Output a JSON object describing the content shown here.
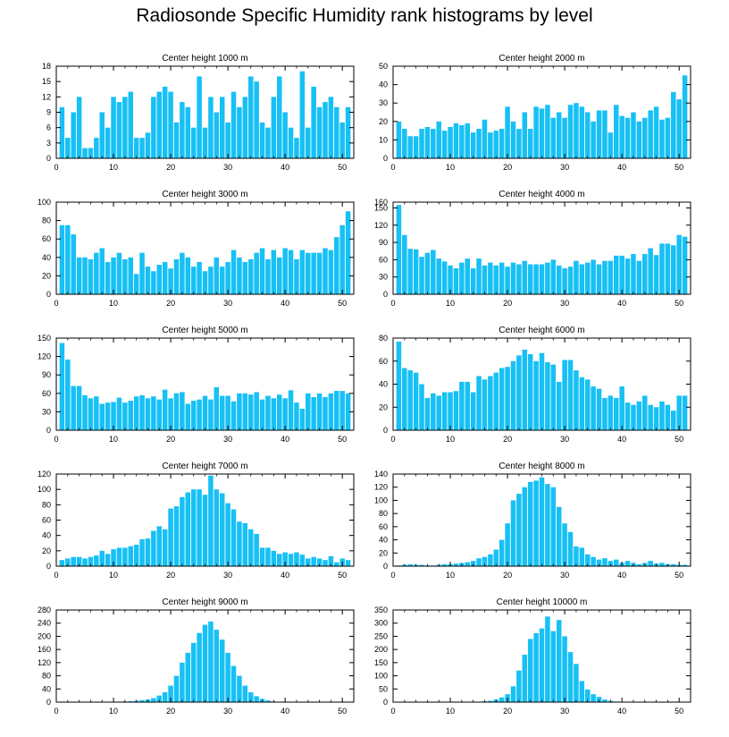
{
  "title": "Radiosonde Specific Humidity rank histograms by level",
  "colors": {
    "bar": "#17c0f5",
    "axis": "#000000"
  },
  "chart_data": [
    {
      "type": "bar",
      "title": "Center height 1000 m",
      "xlim": [
        0,
        52
      ],
      "ylim": [
        0,
        18
      ],
      "xticks": [
        0,
        10,
        20,
        30,
        40,
        50
      ],
      "yticks": [
        0,
        3,
        6,
        9,
        12,
        15,
        18
      ],
      "x": [
        1,
        2,
        3,
        4,
        5,
        6,
        7,
        8,
        9,
        10,
        11,
        12,
        13,
        14,
        15,
        16,
        17,
        18,
        19,
        20,
        21,
        22,
        23,
        24,
        25,
        26,
        27,
        28,
        29,
        30,
        31,
        32,
        33,
        34,
        35,
        36,
        37,
        38,
        39,
        40,
        41,
        42,
        43,
        44,
        45,
        46,
        47,
        48,
        49,
        50,
        51
      ],
      "values": [
        10,
        4,
        9,
        12,
        2,
        2,
        4,
        9,
        6,
        12,
        11,
        12,
        13,
        4,
        4,
        5,
        12,
        13,
        14,
        13,
        7,
        11,
        10,
        6,
        16,
        6,
        12,
        9,
        12,
        7,
        13,
        10,
        12,
        16,
        15,
        7,
        6,
        12,
        16,
        9,
        6,
        4,
        17,
        6,
        14,
        10,
        11,
        12,
        10,
        7,
        10
      ]
    },
    {
      "type": "bar",
      "title": "Center height 2000 m",
      "xlim": [
        0,
        52
      ],
      "ylim": [
        0,
        50
      ],
      "xticks": [
        0,
        10,
        20,
        30,
        40,
        50
      ],
      "yticks": [
        0,
        10,
        20,
        30,
        40,
        50
      ],
      "x": [
        1,
        2,
        3,
        4,
        5,
        6,
        7,
        8,
        9,
        10,
        11,
        12,
        13,
        14,
        15,
        16,
        17,
        18,
        19,
        20,
        21,
        22,
        23,
        24,
        25,
        26,
        27,
        28,
        29,
        30,
        31,
        32,
        33,
        34,
        35,
        36,
        37,
        38,
        39,
        40,
        41,
        42,
        43,
        44,
        45,
        46,
        47,
        48,
        49,
        50,
        51
      ],
      "values": [
        20,
        16,
        12,
        12,
        16,
        17,
        16,
        20,
        15,
        17,
        19,
        18,
        19,
        14,
        16,
        21,
        14,
        15,
        16,
        28,
        20,
        16,
        25,
        16,
        28,
        27,
        29,
        22,
        25,
        22,
        29,
        30,
        28,
        25,
        20,
        26,
        26,
        14,
        29,
        23,
        22,
        25,
        20,
        22,
        26,
        28,
        21,
        22,
        36,
        32,
        45
      ]
    },
    {
      "type": "bar",
      "title": "Center height 3000 m",
      "xlim": [
        0,
        52
      ],
      "ylim": [
        0,
        100
      ],
      "xticks": [
        0,
        10,
        20,
        30,
        40,
        50
      ],
      "yticks": [
        0,
        20,
        40,
        60,
        80,
        100
      ],
      "x": [
        1,
        2,
        3,
        4,
        5,
        6,
        7,
        8,
        9,
        10,
        11,
        12,
        13,
        14,
        15,
        16,
        17,
        18,
        19,
        20,
        21,
        22,
        23,
        24,
        25,
        26,
        27,
        28,
        29,
        30,
        31,
        32,
        33,
        34,
        35,
        36,
        37,
        38,
        39,
        40,
        41,
        42,
        43,
        44,
        45,
        46,
        47,
        48,
        49,
        50,
        51
      ],
      "values": [
        75,
        75,
        65,
        40,
        40,
        38,
        45,
        50,
        35,
        40,
        45,
        38,
        40,
        22,
        45,
        30,
        25,
        32,
        35,
        28,
        38,
        45,
        40,
        30,
        35,
        25,
        30,
        40,
        30,
        35,
        48,
        40,
        35,
        38,
        45,
        50,
        38,
        48,
        40,
        50,
        48,
        38,
        48,
        45,
        45,
        45,
        50,
        48,
        62,
        75,
        90
      ]
    },
    {
      "type": "bar",
      "title": "Center height 4000 m",
      "xlim": [
        0,
        52
      ],
      "ylim": [
        0,
        160
      ],
      "xticks": [
        0,
        10,
        20,
        30,
        40,
        50
      ],
      "yticks": [
        0,
        30,
        60,
        90,
        120,
        150,
        160
      ],
      "x": [
        1,
        2,
        3,
        4,
        5,
        6,
        7,
        8,
        9,
        10,
        11,
        12,
        13,
        14,
        15,
        16,
        17,
        18,
        19,
        20,
        21,
        22,
        23,
        24,
        25,
        26,
        27,
        28,
        29,
        30,
        31,
        32,
        33,
        34,
        35,
        36,
        37,
        38,
        39,
        40,
        41,
        42,
        43,
        44,
        45,
        46,
        47,
        48,
        49,
        50,
        51
      ],
      "values": [
        155,
        103,
        79,
        78,
        65,
        72,
        77,
        62,
        57,
        50,
        45,
        55,
        62,
        45,
        62,
        50,
        55,
        50,
        55,
        48,
        55,
        52,
        58,
        52,
        52,
        52,
        55,
        60,
        50,
        45,
        48,
        58,
        52,
        55,
        60,
        52,
        58,
        58,
        67,
        67,
        62,
        70,
        58,
        70,
        80,
        68,
        88,
        88,
        85,
        103,
        100
      ]
    },
    {
      "type": "bar",
      "title": "Center height 5000 m",
      "xlim": [
        0,
        52
      ],
      "ylim": [
        0,
        150
      ],
      "xticks": [
        0,
        10,
        20,
        30,
        40,
        50
      ],
      "yticks": [
        0,
        30,
        60,
        90,
        120,
        150
      ],
      "x": [
        1,
        2,
        3,
        4,
        5,
        6,
        7,
        8,
        9,
        10,
        11,
        12,
        13,
        14,
        15,
        16,
        17,
        18,
        19,
        20,
        21,
        22,
        23,
        24,
        25,
        26,
        27,
        28,
        29,
        30,
        31,
        32,
        33,
        34,
        35,
        36,
        37,
        38,
        39,
        40,
        41,
        42,
        43,
        44,
        45,
        46,
        47,
        48,
        49,
        50,
        51
      ],
      "values": [
        142,
        115,
        72,
        72,
        57,
        52,
        55,
        43,
        45,
        46,
        53,
        45,
        48,
        55,
        57,
        52,
        55,
        50,
        66,
        52,
        60,
        62,
        43,
        48,
        50,
        56,
        50,
        70,
        56,
        56,
        47,
        60,
        60,
        58,
        62,
        50,
        56,
        52,
        58,
        52,
        65,
        45,
        35,
        60,
        54,
        60,
        54,
        60,
        64,
        64,
        60
      ]
    },
    {
      "type": "bar",
      "title": "Center height 6000 m",
      "xlim": [
        0,
        52
      ],
      "ylim": [
        0,
        80
      ],
      "xticks": [
        0,
        10,
        20,
        30,
        40,
        50
      ],
      "yticks": [
        0,
        20,
        40,
        60,
        80
      ],
      "x": [
        1,
        2,
        3,
        4,
        5,
        6,
        7,
        8,
        9,
        10,
        11,
        12,
        13,
        14,
        15,
        16,
        17,
        18,
        19,
        20,
        21,
        22,
        23,
        24,
        25,
        26,
        27,
        28,
        29,
        30,
        31,
        32,
        33,
        34,
        35,
        36,
        37,
        38,
        39,
        40,
        41,
        42,
        43,
        44,
        45,
        46,
        47,
        48,
        49,
        50,
        51
      ],
      "values": [
        77,
        54,
        52,
        50,
        40,
        28,
        32,
        30,
        33,
        33,
        34,
        42,
        42,
        33,
        47,
        44,
        47,
        50,
        54,
        55,
        60,
        65,
        70,
        66,
        60,
        67,
        59,
        57,
        42,
        61,
        61,
        52,
        46,
        44,
        38,
        36,
        28,
        30,
        28,
        38,
        24,
        22,
        25,
        30,
        22,
        20,
        25,
        22,
        17,
        30,
        30
      ]
    },
    {
      "type": "bar",
      "title": "Center height 7000 m",
      "xlim": [
        0,
        52
      ],
      "ylim": [
        0,
        120
      ],
      "xticks": [
        0,
        10,
        20,
        30,
        40,
        50
      ],
      "yticks": [
        0,
        20,
        40,
        60,
        80,
        100,
        120
      ],
      "x": [
        1,
        2,
        3,
        4,
        5,
        6,
        7,
        8,
        9,
        10,
        11,
        12,
        13,
        14,
        15,
        16,
        17,
        18,
        19,
        20,
        21,
        22,
        23,
        24,
        25,
        26,
        27,
        28,
        29,
        30,
        31,
        32,
        33,
        34,
        35,
        36,
        37,
        38,
        39,
        40,
        41,
        42,
        43,
        44,
        45,
        46,
        47,
        48,
        49,
        50,
        51
      ],
      "values": [
        8,
        10,
        12,
        12,
        10,
        12,
        14,
        20,
        16,
        22,
        24,
        24,
        26,
        28,
        35,
        36,
        46,
        52,
        48,
        75,
        78,
        90,
        96,
        100,
        100,
        93,
        118,
        100,
        95,
        82,
        74,
        58,
        56,
        48,
        42,
        24,
        24,
        20,
        16,
        18,
        16,
        18,
        15,
        10,
        12,
        10,
        8,
        13,
        5,
        10,
        8
      ]
    },
    {
      "type": "bar",
      "title": "Center height 8000 m",
      "xlim": [
        0,
        52
      ],
      "ylim": [
        0,
        140
      ],
      "xticks": [
        0,
        10,
        20,
        30,
        40,
        50
      ],
      "yticks": [
        0,
        20,
        40,
        60,
        80,
        100,
        120,
        140
      ],
      "x": [
        1,
        2,
        3,
        4,
        5,
        6,
        7,
        8,
        9,
        10,
        11,
        12,
        13,
        14,
        15,
        16,
        17,
        18,
        19,
        20,
        21,
        22,
        23,
        24,
        25,
        26,
        27,
        28,
        29,
        30,
        31,
        32,
        33,
        34,
        35,
        36,
        37,
        38,
        39,
        40,
        41,
        42,
        43,
        44,
        45,
        46,
        47,
        48,
        49,
        50,
        51
      ],
      "values": [
        1,
        2,
        3,
        2,
        2,
        1,
        1,
        2,
        3,
        3,
        4,
        5,
        6,
        8,
        12,
        14,
        18,
        25,
        40,
        65,
        100,
        110,
        120,
        128,
        130,
        135,
        125,
        120,
        90,
        65,
        52,
        30,
        28,
        18,
        14,
        10,
        12,
        8,
        10,
        5,
        8,
        5,
        3,
        5,
        8,
        4,
        5,
        3,
        3,
        2,
        2
      ]
    },
    {
      "type": "bar",
      "title": "Center height 9000 m",
      "xlim": [
        0,
        52
      ],
      "ylim": [
        0,
        280
      ],
      "xticks": [
        0,
        10,
        20,
        30,
        40,
        50
      ],
      "yticks": [
        0,
        40,
        80,
        120,
        160,
        200,
        240,
        280
      ],
      "x": [
        1,
        2,
        3,
        4,
        5,
        6,
        7,
        8,
        9,
        10,
        11,
        12,
        13,
        14,
        15,
        16,
        17,
        18,
        19,
        20,
        21,
        22,
        23,
        24,
        25,
        26,
        27,
        28,
        29,
        30,
        31,
        32,
        33,
        34,
        35,
        36,
        37,
        38,
        39,
        40,
        41,
        42,
        43,
        44,
        45,
        46,
        47,
        48,
        49,
        50,
        51
      ],
      "values": [
        0,
        0,
        0,
        0,
        0,
        0,
        0,
        0,
        0,
        0,
        1,
        2,
        3,
        4,
        6,
        8,
        12,
        20,
        30,
        50,
        80,
        120,
        150,
        180,
        210,
        235,
        245,
        220,
        190,
        150,
        110,
        80,
        50,
        30,
        18,
        10,
        5,
        2,
        1,
        1,
        0,
        1,
        0,
        0,
        0,
        0,
        0,
        0,
        0,
        0,
        0
      ]
    },
    {
      "type": "bar",
      "title": "Center height 10000 m",
      "xlim": [
        0,
        52
      ],
      "ylim": [
        0,
        350
      ],
      "xticks": [
        0,
        10,
        20,
        30,
        40,
        50
      ],
      "yticks": [
        0,
        50,
        100,
        150,
        200,
        250,
        300,
        350
      ],
      "x": [
        1,
        2,
        3,
        4,
        5,
        6,
        7,
        8,
        9,
        10,
        11,
        12,
        13,
        14,
        15,
        16,
        17,
        18,
        19,
        20,
        21,
        22,
        23,
        24,
        25,
        26,
        27,
        28,
        29,
        30,
        31,
        32,
        33,
        34,
        35,
        36,
        37,
        38,
        39,
        40,
        41,
        42,
        43,
        44,
        45,
        46,
        47,
        48,
        49,
        50,
        51
      ],
      "values": [
        0,
        0,
        0,
        0,
        0,
        0,
        0,
        0,
        0,
        0,
        0,
        0,
        0,
        0,
        1,
        3,
        5,
        10,
        18,
        30,
        60,
        120,
        180,
        240,
        262,
        280,
        325,
        270,
        312,
        250,
        190,
        145,
        80,
        48,
        30,
        20,
        10,
        5,
        2,
        1,
        1,
        0,
        0,
        0,
        0,
        0,
        0,
        0,
        0,
        0,
        0
      ]
    }
  ]
}
